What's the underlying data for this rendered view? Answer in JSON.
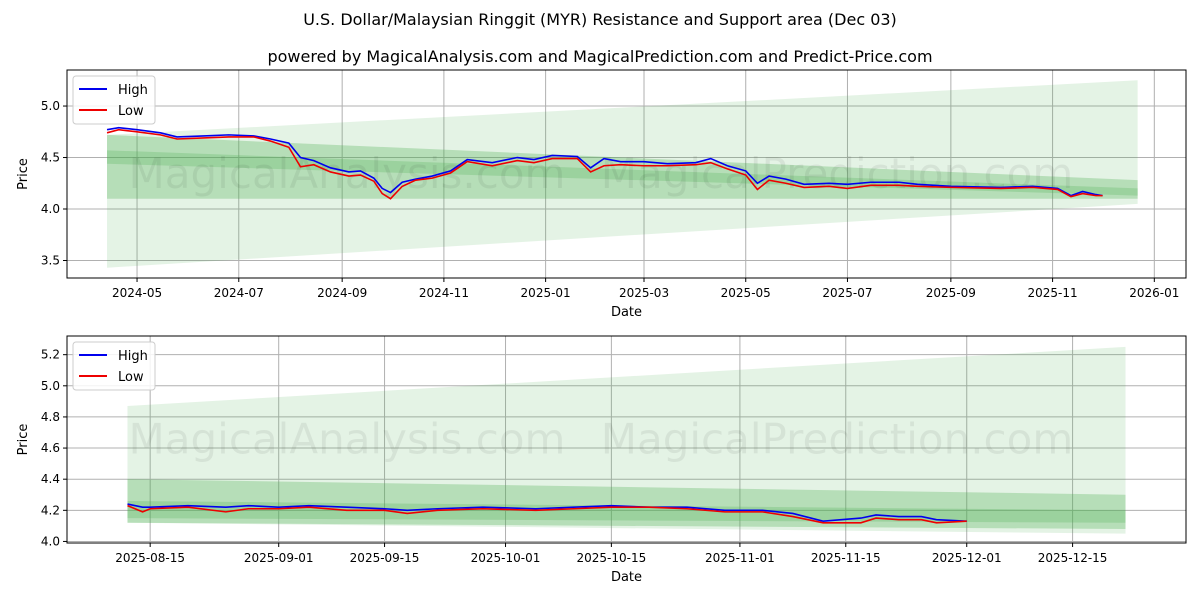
{
  "title": "U.S. Dollar/Malaysian Ringgit (MYR) Resistance and Support area (Dec 03)",
  "subtitle": "powered by MagicalAnalysis.com and MagicalPrediction.com and Predict-Price.com",
  "watermark": [
    "MagicalAnalysis.com",
    "MagicalPrediction.com"
  ],
  "colors": {
    "high": "#0000ee",
    "low": "#ee0000",
    "band": "#4caf50"
  },
  "chart_data": [
    {
      "type": "line",
      "xlabel": "Date",
      "ylabel": "Price",
      "xlim": [
        "2024-03-20",
        "2026-01-20"
      ],
      "ylim": [
        3.33,
        5.35
      ],
      "xticks": [
        "2024-05",
        "2024-07",
        "2024-09",
        "2024-11",
        "2025-01",
        "2025-03",
        "2025-05",
        "2025-07",
        "2025-09",
        "2025-11",
        "2026-01"
      ],
      "xtick_dates": [
        "2024-05-01",
        "2024-07-01",
        "2024-09-01",
        "2024-11-01",
        "2025-01-01",
        "2025-03-01",
        "2025-05-01",
        "2025-07-01",
        "2025-09-01",
        "2025-11-01",
        "2026-01-01"
      ],
      "yticks": [
        "3.5",
        "4.0",
        "4.5",
        "5.0"
      ],
      "grid": true,
      "legend": "top-left",
      "legend_entries": [
        "High",
        "Low"
      ],
      "bands": [
        {
          "start": "2024-04-13",
          "end": "2025-12-22",
          "from": [
            3.43,
            4.72
          ],
          "to": [
            4.05,
            5.25
          ],
          "opacity": 0.15
        },
        {
          "start": "2024-04-13",
          "end": "2025-12-22",
          "from": [
            4.1,
            4.72
          ],
          "to": [
            4.1,
            4.28
          ],
          "opacity": 0.3
        },
        {
          "start": "2024-04-13",
          "end": "2025-12-22",
          "from": [
            4.44,
            4.57
          ],
          "to": [
            4.13,
            4.2
          ],
          "opacity": 0.25
        }
      ],
      "series": [
        {
          "name": "High",
          "points": [
            [
              "2024-04-13",
              4.77
            ],
            [
              "2024-04-20",
              4.79
            ],
            [
              "2024-05-01",
              4.77
            ],
            [
              "2024-05-15",
              4.74
            ],
            [
              "2024-05-25",
              4.7
            ],
            [
              "2024-06-10",
              4.71
            ],
            [
              "2024-06-25",
              4.72
            ],
            [
              "2024-07-10",
              4.71
            ],
            [
              "2024-07-20",
              4.68
            ],
            [
              "2024-07-31",
              4.64
            ],
            [
              "2024-08-07",
              4.5
            ],
            [
              "2024-08-15",
              4.47
            ],
            [
              "2024-08-25",
              4.4
            ],
            [
              "2024-09-05",
              4.36
            ],
            [
              "2024-09-12",
              4.37
            ],
            [
              "2024-09-20",
              4.3
            ],
            [
              "2024-09-25",
              4.2
            ],
            [
              "2024-09-30",
              4.16
            ],
            [
              "2024-10-07",
              4.26
            ],
            [
              "2024-10-15",
              4.29
            ],
            [
              "2024-10-25",
              4.32
            ],
            [
              "2024-11-05",
              4.37
            ],
            [
              "2024-11-15",
              4.48
            ],
            [
              "2024-11-30",
              4.45
            ],
            [
              "2024-12-15",
              4.5
            ],
            [
              "2024-12-25",
              4.48
            ],
            [
              "2025-01-05",
              4.52
            ],
            [
              "2025-01-20",
              4.51
            ],
            [
              "2025-01-28",
              4.4
            ],
            [
              "2025-02-05",
              4.49
            ],
            [
              "2025-02-15",
              4.46
            ],
            [
              "2025-03-01",
              4.46
            ],
            [
              "2025-03-15",
              4.44
            ],
            [
              "2025-04-01",
              4.45
            ],
            [
              "2025-04-10",
              4.49
            ],
            [
              "2025-04-20",
              4.42
            ],
            [
              "2025-05-01",
              4.37
            ],
            [
              "2025-05-08",
              4.25
            ],
            [
              "2025-05-15",
              4.32
            ],
            [
              "2025-05-25",
              4.29
            ],
            [
              "2025-06-05",
              4.24
            ],
            [
              "2025-06-20",
              4.25
            ],
            [
              "2025-07-01",
              4.24
            ],
            [
              "2025-07-15",
              4.26
            ],
            [
              "2025-08-01",
              4.26
            ],
            [
              "2025-08-12",
              4.24
            ],
            [
              "2025-09-01",
              4.22
            ],
            [
              "2025-10-01",
              4.21
            ],
            [
              "2025-10-20",
              4.22
            ],
            [
              "2025-11-04",
              4.2
            ],
            [
              "2025-11-12",
              4.13
            ],
            [
              "2025-11-19",
              4.17
            ],
            [
              "2025-11-27",
              4.14
            ],
            [
              "2025-12-01",
              4.13
            ]
          ]
        },
        {
          "name": "Low",
          "points": [
            [
              "2024-04-13",
              4.74
            ],
            [
              "2024-04-20",
              4.77
            ],
            [
              "2024-05-01",
              4.75
            ],
            [
              "2024-05-15",
              4.72
            ],
            [
              "2024-05-25",
              4.68
            ],
            [
              "2024-06-10",
              4.69
            ],
            [
              "2024-06-25",
              4.7
            ],
            [
              "2024-07-10",
              4.7
            ],
            [
              "2024-07-20",
              4.66
            ],
            [
              "2024-07-31",
              4.6
            ],
            [
              "2024-08-07",
              4.41
            ],
            [
              "2024-08-15",
              4.43
            ],
            [
              "2024-08-25",
              4.36
            ],
            [
              "2024-09-05",
              4.32
            ],
            [
              "2024-09-12",
              4.33
            ],
            [
              "2024-09-20",
              4.27
            ],
            [
              "2024-09-25",
              4.15
            ],
            [
              "2024-09-30",
              4.1
            ],
            [
              "2024-10-07",
              4.22
            ],
            [
              "2024-10-15",
              4.28
            ],
            [
              "2024-10-25",
              4.3
            ],
            [
              "2024-11-05",
              4.35
            ],
            [
              "2024-11-15",
              4.46
            ],
            [
              "2024-11-30",
              4.42
            ],
            [
              "2024-12-15",
              4.47
            ],
            [
              "2024-12-25",
              4.45
            ],
            [
              "2025-01-05",
              4.49
            ],
            [
              "2025-01-20",
              4.49
            ],
            [
              "2025-01-28",
              4.36
            ],
            [
              "2025-02-05",
              4.42
            ],
            [
              "2025-02-15",
              4.43
            ],
            [
              "2025-03-01",
              4.42
            ],
            [
              "2025-03-15",
              4.42
            ],
            [
              "2025-04-01",
              4.43
            ],
            [
              "2025-04-10",
              4.45
            ],
            [
              "2025-04-20",
              4.39
            ],
            [
              "2025-05-01",
              4.33
            ],
            [
              "2025-05-08",
              4.19
            ],
            [
              "2025-05-15",
              4.28
            ],
            [
              "2025-05-25",
              4.25
            ],
            [
              "2025-06-05",
              4.21
            ],
            [
              "2025-06-20",
              4.22
            ],
            [
              "2025-07-01",
              4.2
            ],
            [
              "2025-07-15",
              4.23
            ],
            [
              "2025-08-01",
              4.23
            ],
            [
              "2025-08-12",
              4.22
            ],
            [
              "2025-09-01",
              4.21
            ],
            [
              "2025-10-01",
              4.2
            ],
            [
              "2025-10-20",
              4.21
            ],
            [
              "2025-11-04",
              4.19
            ],
            [
              "2025-11-12",
              4.12
            ],
            [
              "2025-11-19",
              4.15
            ],
            [
              "2025-11-27",
              4.13
            ],
            [
              "2025-12-01",
              4.13
            ]
          ]
        }
      ]
    },
    {
      "type": "line",
      "xlabel": "Date",
      "ylabel": "Price",
      "xlim": [
        "2025-08-04",
        "2025-12-30"
      ],
      "ylim": [
        3.99,
        5.32
      ],
      "xticks": [
        "2025-08-15",
        "2025-09-01",
        "2025-09-15",
        "2025-10-01",
        "2025-10-15",
        "2025-11-01",
        "2025-11-15",
        "2025-12-01",
        "2025-12-15"
      ],
      "xtick_dates": [
        "2025-08-15",
        "2025-09-01",
        "2025-09-15",
        "2025-10-01",
        "2025-10-15",
        "2025-11-01",
        "2025-11-15",
        "2025-12-01",
        "2025-12-15"
      ],
      "yticks": [
        "4.0",
        "4.2",
        "4.4",
        "4.6",
        "4.8",
        "5.0",
        "5.2"
      ],
      "grid": true,
      "legend": "top-left",
      "legend_entries": [
        "High",
        "Low"
      ],
      "bands": [
        {
          "start": "2025-08-12",
          "end": "2025-12-22",
          "from": [
            4.12,
            4.87
          ],
          "to": [
            4.05,
            5.25
          ],
          "opacity": 0.15
        },
        {
          "start": "2025-08-12",
          "end": "2025-12-22",
          "from": [
            4.12,
            4.4
          ],
          "to": [
            4.08,
            4.3
          ],
          "opacity": 0.3
        },
        {
          "start": "2025-08-12",
          "end": "2025-12-22",
          "from": [
            4.15,
            4.26
          ],
          "to": [
            4.12,
            4.2
          ],
          "opacity": 0.25
        }
      ],
      "series": [
        {
          "name": "High",
          "points": [
            [
              "2025-08-12",
              4.24
            ],
            [
              "2025-08-14",
              4.22
            ],
            [
              "2025-08-15",
              4.22
            ],
            [
              "2025-08-20",
              4.23
            ],
            [
              "2025-08-25",
              4.22
            ],
            [
              "2025-08-28",
              4.23
            ],
            [
              "2025-09-01",
              4.22
            ],
            [
              "2025-09-05",
              4.23
            ],
            [
              "2025-09-10",
              4.22
            ],
            [
              "2025-09-15",
              4.21
            ],
            [
              "2025-09-18",
              4.2
            ],
            [
              "2025-09-22",
              4.21
            ],
            [
              "2025-09-28",
              4.22
            ],
            [
              "2025-10-05",
              4.21
            ],
            [
              "2025-10-10",
              4.22
            ],
            [
              "2025-10-15",
              4.23
            ],
            [
              "2025-10-20",
              4.22
            ],
            [
              "2025-10-25",
              4.22
            ],
            [
              "2025-10-30",
              4.2
            ],
            [
              "2025-11-04",
              4.2
            ],
            [
              "2025-11-08",
              4.18
            ],
            [
              "2025-11-12",
              4.13
            ],
            [
              "2025-11-17",
              4.15
            ],
            [
              "2025-11-19",
              4.17
            ],
            [
              "2025-11-22",
              4.16
            ],
            [
              "2025-11-25",
              4.16
            ],
            [
              "2025-11-27",
              4.14
            ],
            [
              "2025-12-01",
              4.13
            ]
          ]
        },
        {
          "name": "Low",
          "points": [
            [
              "2025-08-12",
              4.23
            ],
            [
              "2025-08-14",
              4.19
            ],
            [
              "2025-08-15",
              4.21
            ],
            [
              "2025-08-20",
              4.22
            ],
            [
              "2025-08-25",
              4.19
            ],
            [
              "2025-08-28",
              4.21
            ],
            [
              "2025-09-01",
              4.21
            ],
            [
              "2025-09-05",
              4.22
            ],
            [
              "2025-09-10",
              4.2
            ],
            [
              "2025-09-15",
              4.2
            ],
            [
              "2025-09-18",
              4.18
            ],
            [
              "2025-09-22",
              4.2
            ],
            [
              "2025-09-28",
              4.21
            ],
            [
              "2025-10-05",
              4.2
            ],
            [
              "2025-10-10",
              4.21
            ],
            [
              "2025-10-15",
              4.22
            ],
            [
              "2025-10-20",
              4.22
            ],
            [
              "2025-10-25",
              4.21
            ],
            [
              "2025-10-30",
              4.19
            ],
            [
              "2025-11-04",
              4.19
            ],
            [
              "2025-11-08",
              4.16
            ],
            [
              "2025-11-12",
              4.12
            ],
            [
              "2025-11-17",
              4.12
            ],
            [
              "2025-11-19",
              4.15
            ],
            [
              "2025-11-22",
              4.14
            ],
            [
              "2025-11-25",
              4.14
            ],
            [
              "2025-11-27",
              4.12
            ],
            [
              "2025-12-01",
              4.13
            ]
          ]
        }
      ]
    }
  ]
}
